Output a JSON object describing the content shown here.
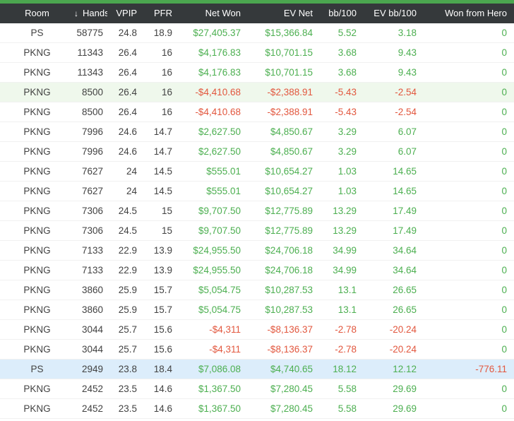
{
  "app": {
    "accent_bar_color": "#4BA64F"
  },
  "colors": {
    "header_background": "#35393B",
    "header_text": "#FFFFFF",
    "text_plain": "#424242",
    "text_positive": "#4CAF50",
    "text_negative": "#E2573E",
    "row_highlight_green": "#EFF8EC",
    "row_highlight_blue": "#DCEDFB"
  },
  "table": {
    "sort_icon": "↓",
    "columns": [
      {
        "key": "room",
        "label": "Room",
        "align": "center",
        "colored": false,
        "sorted": false
      },
      {
        "key": "hands",
        "label": "Hands",
        "align": "right",
        "colored": false,
        "sorted": true
      },
      {
        "key": "vpip",
        "label": "VPIP",
        "align": "right",
        "colored": false,
        "sorted": false
      },
      {
        "key": "pfr",
        "label": "PFR",
        "align": "right",
        "colored": false,
        "sorted": false
      },
      {
        "key": "net-won",
        "label": "Net Won",
        "align": "right",
        "colored": true,
        "sorted": false
      },
      {
        "key": "ev-net",
        "label": "EV Net",
        "align": "right",
        "colored": true,
        "sorted": false
      },
      {
        "key": "bb-100",
        "label": "bb/100",
        "align": "right",
        "colored": true,
        "sorted": false
      },
      {
        "key": "ev-bb-100",
        "label": "EV bb/100",
        "align": "right",
        "colored": true,
        "sorted": false
      },
      {
        "key": "won-from-hero",
        "label": "Won from Hero",
        "align": "right",
        "colored": true,
        "sorted": false
      }
    ],
    "rows": [
      {
        "highlight": "none",
        "cells": [
          "PS",
          "58775",
          "24.8",
          "18.9",
          "$27,405.37",
          "$15,366.84",
          "5.52",
          "3.18",
          "0"
        ]
      },
      {
        "highlight": "none",
        "cells": [
          "PKNG",
          "11343",
          "26.4",
          "16",
          "$4,176.83",
          "$10,701.15",
          "3.68",
          "9.43",
          "0"
        ]
      },
      {
        "highlight": "none",
        "cells": [
          "PKNG",
          "11343",
          "26.4",
          "16",
          "$4,176.83",
          "$10,701.15",
          "3.68",
          "9.43",
          "0"
        ]
      },
      {
        "highlight": "green",
        "cells": [
          "PKNG",
          "8500",
          "26.4",
          "16",
          "-$4,410.68",
          "-$2,388.91",
          "-5.43",
          "-2.54",
          "0"
        ]
      },
      {
        "highlight": "none",
        "cells": [
          "PKNG",
          "8500",
          "26.4",
          "16",
          "-$4,410.68",
          "-$2,388.91",
          "-5.43",
          "-2.54",
          "0"
        ]
      },
      {
        "highlight": "none",
        "cells": [
          "PKNG",
          "7996",
          "24.6",
          "14.7",
          "$2,627.50",
          "$4,850.67",
          "3.29",
          "6.07",
          "0"
        ]
      },
      {
        "highlight": "none",
        "cells": [
          "PKNG",
          "7996",
          "24.6",
          "14.7",
          "$2,627.50",
          "$4,850.67",
          "3.29",
          "6.07",
          "0"
        ]
      },
      {
        "highlight": "none",
        "cells": [
          "PKNG",
          "7627",
          "24",
          "14.5",
          "$555.01",
          "$10,654.27",
          "1.03",
          "14.65",
          "0"
        ]
      },
      {
        "highlight": "none",
        "cells": [
          "PKNG",
          "7627",
          "24",
          "14.5",
          "$555.01",
          "$10,654.27",
          "1.03",
          "14.65",
          "0"
        ]
      },
      {
        "highlight": "none",
        "cells": [
          "PKNG",
          "7306",
          "24.5",
          "15",
          "$9,707.50",
          "$12,775.89",
          "13.29",
          "17.49",
          "0"
        ]
      },
      {
        "highlight": "none",
        "cells": [
          "PKNG",
          "7306",
          "24.5",
          "15",
          "$9,707.50",
          "$12,775.89",
          "13.29",
          "17.49",
          "0"
        ]
      },
      {
        "highlight": "none",
        "cells": [
          "PKNG",
          "7133",
          "22.9",
          "13.9",
          "$24,955.50",
          "$24,706.18",
          "34.99",
          "34.64",
          "0"
        ]
      },
      {
        "highlight": "none",
        "cells": [
          "PKNG",
          "7133",
          "22.9",
          "13.9",
          "$24,955.50",
          "$24,706.18",
          "34.99",
          "34.64",
          "0"
        ]
      },
      {
        "highlight": "none",
        "cells": [
          "PKNG",
          "3860",
          "25.9",
          "15.7",
          "$5,054.75",
          "$10,287.53",
          "13.1",
          "26.65",
          "0"
        ]
      },
      {
        "highlight": "none",
        "cells": [
          "PKNG",
          "3860",
          "25.9",
          "15.7",
          "$5,054.75",
          "$10,287.53",
          "13.1",
          "26.65",
          "0"
        ]
      },
      {
        "highlight": "none",
        "cells": [
          "PKNG",
          "3044",
          "25.7",
          "15.6",
          "-$4,311",
          "-$8,136.37",
          "-2.78",
          "-20.24",
          "0"
        ]
      },
      {
        "highlight": "none",
        "cells": [
          "PKNG",
          "3044",
          "25.7",
          "15.6",
          "-$4,311",
          "-$8,136.37",
          "-2.78",
          "-20.24",
          "0"
        ]
      },
      {
        "highlight": "blue",
        "cells": [
          "PS",
          "2949",
          "23.8",
          "18.4",
          "$7,086.08",
          "$4,740.65",
          "18.12",
          "12.12",
          "-776.11"
        ]
      },
      {
        "highlight": "none",
        "cells": [
          "PKNG",
          "2452",
          "23.5",
          "14.6",
          "$1,367.50",
          "$7,280.45",
          "5.58",
          "29.69",
          "0"
        ]
      },
      {
        "highlight": "none",
        "cells": [
          "PKNG",
          "2452",
          "23.5",
          "14.6",
          "$1,367.50",
          "$7,280.45",
          "5.58",
          "29.69",
          "0"
        ]
      }
    ]
  }
}
